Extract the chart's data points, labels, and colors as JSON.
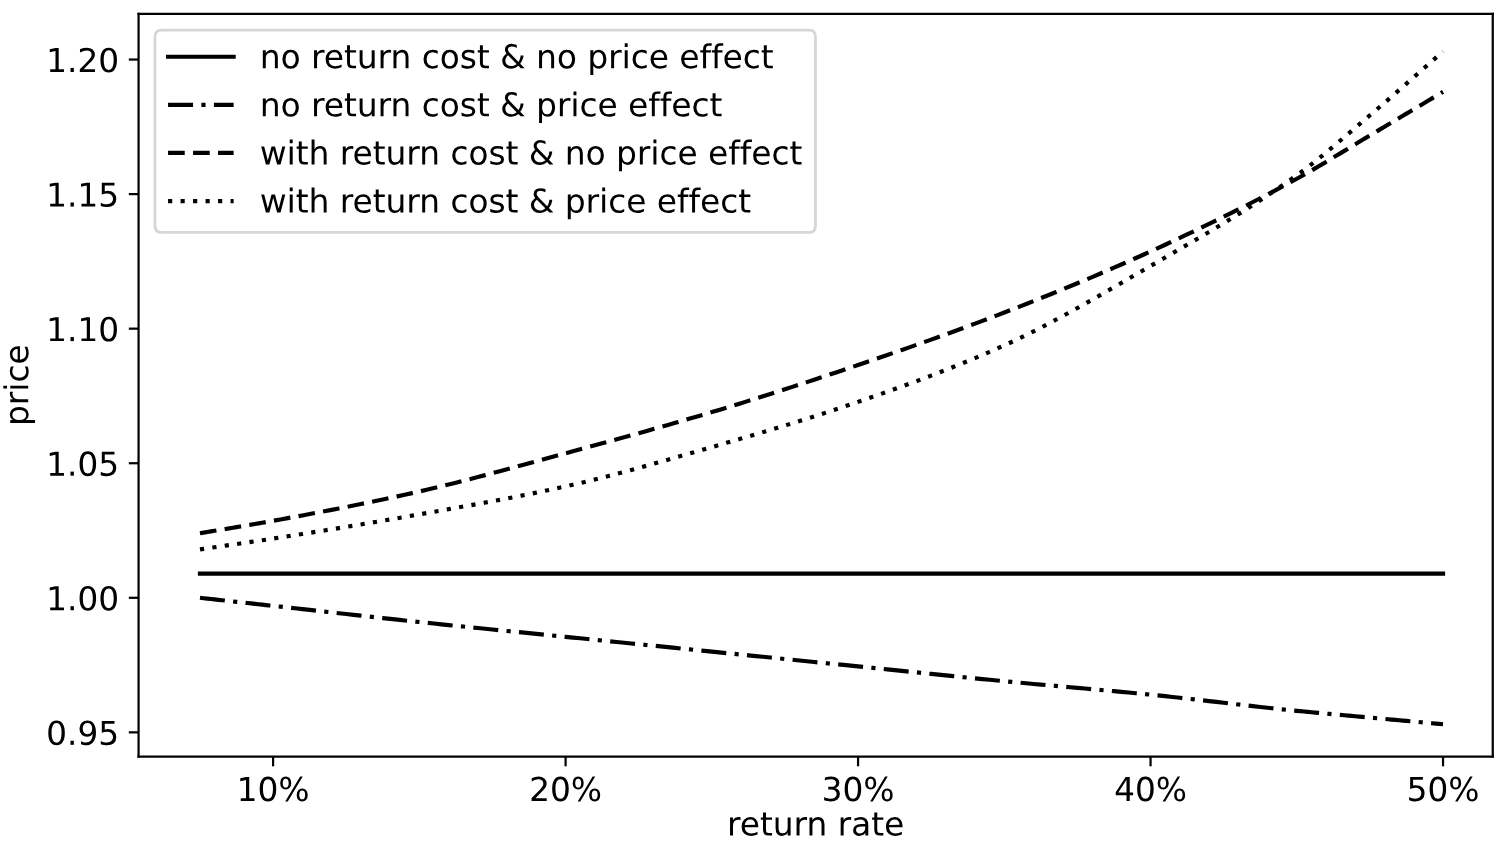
{
  "chart_data": {
    "type": "line",
    "xlabel": "return rate",
    "ylabel": "price",
    "x": [
      7.5,
      10,
      15,
      20,
      25,
      30,
      35,
      40,
      45,
      47.5,
      50
    ],
    "series": [
      {
        "name": "no return cost & no price effect",
        "color": "#000000",
        "line_style": "solid",
        "values": [
          1.009,
          1.009,
          1.009,
          1.009,
          1.009,
          1.009,
          1.009,
          1.009,
          1.009,
          1.009,
          1.009
        ]
      },
      {
        "name": "no return cost & price effect",
        "color": "#000000",
        "line_style": "dashdot",
        "values": [
          1.0,
          0.997,
          0.991,
          0.9855,
          0.98,
          0.9745,
          0.969,
          0.964,
          0.958,
          0.9555,
          0.953
        ]
      },
      {
        "name": "with return cost & no price effect",
        "color": "#000000",
        "line_style": "dashed",
        "values": [
          1.024,
          1.0286,
          1.0395,
          1.0537,
          1.069,
          1.0865,
          1.106,
          1.1287,
          1.1557,
          1.1718,
          1.188
        ]
      },
      {
        "name": "with return cost & price effect",
        "color": "#000000",
        "line_style": "dotted",
        "values": [
          1.018,
          1.022,
          1.031,
          1.0414,
          1.056,
          1.0728,
          1.0938,
          1.1233,
          1.157,
          1.1793,
          1.203
        ]
      }
    ],
    "xlim": [
      5.4,
      51.7
    ],
    "xticks": [
      {
        "value": 10,
        "label": "10%"
      },
      {
        "value": 20,
        "label": "20%"
      },
      {
        "value": 30,
        "label": "30%"
      },
      {
        "value": 40,
        "label": "40%"
      },
      {
        "value": 50,
        "label": "50%"
      }
    ],
    "ylim": [
      0.941,
      1.217
    ],
    "yticks": [
      {
        "value": 0.95,
        "label": "0.95"
      },
      {
        "value": 1.0,
        "label": "1.00"
      },
      {
        "value": 1.05,
        "label": "1.05"
      },
      {
        "value": 1.1,
        "label": "1.10"
      },
      {
        "value": 1.15,
        "label": "1.15"
      },
      {
        "value": 1.2,
        "label": "1.20"
      }
    ],
    "grid": false,
    "legend": "top left"
  }
}
